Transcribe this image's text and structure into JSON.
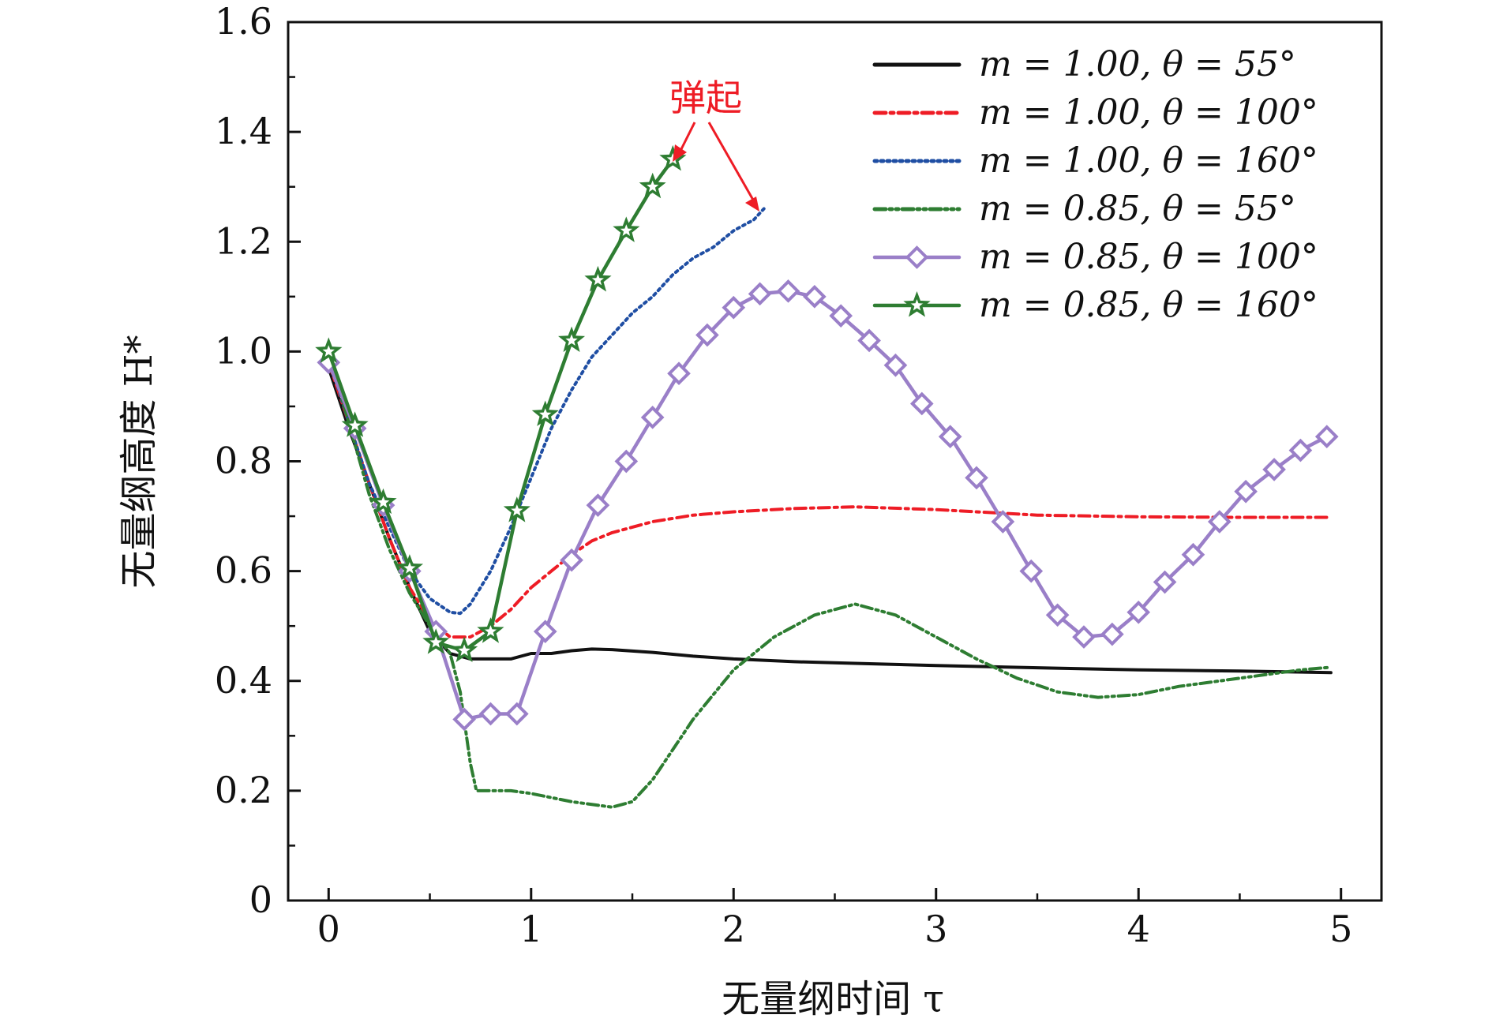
{
  "chart_data": {
    "type": "line",
    "title": "",
    "xlabel": "无量纲时间 τ",
    "ylabel": "无量纲高度 H*",
    "xlim": [
      -0.2,
      5.2
    ],
    "ylim": [
      0,
      1.6
    ],
    "x_ticks": [
      "0",
      "1",
      "2",
      "3",
      "4",
      "5"
    ],
    "y_ticks": [
      "0",
      "0.2",
      "0.4",
      "0.6",
      "0.8",
      "1.0",
      "1.2",
      "1.4",
      "1.6"
    ],
    "grid": false,
    "legend_position": "top-right",
    "annotation": {
      "text": "弹起",
      "color": "#ee1c25"
    },
    "series": [
      {
        "name": "m = 1.00, θ = 55°",
        "color": "#111111",
        "dash": "solid",
        "marker": "none",
        "points": [
          [
            0,
            0.97
          ],
          [
            0.1,
            0.86
          ],
          [
            0.2,
            0.76
          ],
          [
            0.3,
            0.66
          ],
          [
            0.4,
            0.57
          ],
          [
            0.5,
            0.49
          ],
          [
            0.6,
            0.45
          ],
          [
            0.7,
            0.44
          ],
          [
            0.8,
            0.44
          ],
          [
            0.9,
            0.44
          ],
          [
            1.0,
            0.45
          ],
          [
            1.1,
            0.45
          ],
          [
            1.2,
            0.455
          ],
          [
            1.3,
            0.458
          ],
          [
            1.4,
            0.457
          ],
          [
            1.6,
            0.452
          ],
          [
            1.8,
            0.445
          ],
          [
            2.0,
            0.44
          ],
          [
            2.3,
            0.435
          ],
          [
            2.6,
            0.432
          ],
          [
            3.0,
            0.428
          ],
          [
            3.5,
            0.424
          ],
          [
            4.0,
            0.42
          ],
          [
            4.5,
            0.418
          ],
          [
            4.95,
            0.415
          ]
        ]
      },
      {
        "name": "m = 1.00, θ = 100°",
        "color": "#ee1c25",
        "dash": "dashdot",
        "marker": "none",
        "points": [
          [
            0,
            0.98
          ],
          [
            0.1,
            0.87
          ],
          [
            0.2,
            0.76
          ],
          [
            0.3,
            0.66
          ],
          [
            0.4,
            0.57
          ],
          [
            0.5,
            0.51
          ],
          [
            0.6,
            0.48
          ],
          [
            0.7,
            0.48
          ],
          [
            0.8,
            0.5
          ],
          [
            0.9,
            0.53
          ],
          [
            1.0,
            0.57
          ],
          [
            1.1,
            0.6
          ],
          [
            1.2,
            0.63
          ],
          [
            1.3,
            0.655
          ],
          [
            1.4,
            0.67
          ],
          [
            1.6,
            0.69
          ],
          [
            1.8,
            0.702
          ],
          [
            2.0,
            0.708
          ],
          [
            2.3,
            0.714
          ],
          [
            2.6,
            0.717
          ],
          [
            3.0,
            0.712
          ],
          [
            3.5,
            0.702
          ],
          [
            4.0,
            0.699
          ],
          [
            4.5,
            0.698
          ],
          [
            4.95,
            0.698
          ]
        ]
      },
      {
        "name": "m = 1.00, θ = 160°",
        "color": "#1f4ea3",
        "dash": "dot",
        "marker": "none",
        "points": [
          [
            0,
            0.99
          ],
          [
            0.1,
            0.87
          ],
          [
            0.2,
            0.76
          ],
          [
            0.3,
            0.68
          ],
          [
            0.4,
            0.6
          ],
          [
            0.5,
            0.55
          ],
          [
            0.6,
            0.525
          ],
          [
            0.65,
            0.523
          ],
          [
            0.7,
            0.54
          ],
          [
            0.8,
            0.6
          ],
          [
            0.9,
            0.68
          ],
          [
            1.0,
            0.77
          ],
          [
            1.1,
            0.86
          ],
          [
            1.2,
            0.93
          ],
          [
            1.3,
            0.99
          ],
          [
            1.4,
            1.03
          ],
          [
            1.5,
            1.07
          ],
          [
            1.6,
            1.1
          ],
          [
            1.7,
            1.14
          ],
          [
            1.8,
            1.17
          ],
          [
            1.9,
            1.19
          ],
          [
            2.0,
            1.22
          ],
          [
            2.1,
            1.24
          ],
          [
            2.15,
            1.26
          ]
        ]
      },
      {
        "name": "m = 0.85, θ = 55°",
        "color": "#2e7d32",
        "dash": "dashdotdot",
        "marker": "none",
        "points": [
          [
            0,
            1.0
          ],
          [
            0.1,
            0.87
          ],
          [
            0.2,
            0.74
          ],
          [
            0.3,
            0.64
          ],
          [
            0.4,
            0.56
          ],
          [
            0.5,
            0.5
          ],
          [
            0.6,
            0.45
          ],
          [
            0.65,
            0.38
          ],
          [
            0.7,
            0.25
          ],
          [
            0.73,
            0.2
          ],
          [
            0.8,
            0.2
          ],
          [
            0.9,
            0.2
          ],
          [
            1.0,
            0.195
          ],
          [
            1.2,
            0.18
          ],
          [
            1.4,
            0.17
          ],
          [
            1.5,
            0.18
          ],
          [
            1.6,
            0.22
          ],
          [
            1.8,
            0.33
          ],
          [
            2.0,
            0.42
          ],
          [
            2.2,
            0.48
          ],
          [
            2.4,
            0.52
          ],
          [
            2.6,
            0.54
          ],
          [
            2.8,
            0.52
          ],
          [
            3.0,
            0.48
          ],
          [
            3.2,
            0.44
          ],
          [
            3.4,
            0.405
          ],
          [
            3.6,
            0.38
          ],
          [
            3.8,
            0.37
          ],
          [
            4.0,
            0.375
          ],
          [
            4.2,
            0.39
          ],
          [
            4.4,
            0.4
          ],
          [
            4.6,
            0.41
          ],
          [
            4.8,
            0.42
          ],
          [
            4.95,
            0.425
          ]
        ]
      },
      {
        "name": "m = 0.85, θ = 100°",
        "color": "#9a7fc8",
        "dash": "solid",
        "marker": "diamond",
        "points": [
          [
            0,
            0.98
          ],
          [
            0.13,
            0.86
          ],
          [
            0.27,
            0.72
          ],
          [
            0.4,
            0.6
          ],
          [
            0.53,
            0.49
          ],
          [
            0.67,
            0.33
          ],
          [
            0.8,
            0.34
          ],
          [
            0.93,
            0.34
          ],
          [
            1.07,
            0.49
          ],
          [
            1.2,
            0.62
          ],
          [
            1.33,
            0.72
          ],
          [
            1.47,
            0.8
          ],
          [
            1.6,
            0.88
          ],
          [
            1.73,
            0.96
          ],
          [
            1.87,
            1.03
          ],
          [
            2.0,
            1.08
          ],
          [
            2.13,
            1.105
          ],
          [
            2.27,
            1.11
          ],
          [
            2.4,
            1.1
          ],
          [
            2.53,
            1.065
          ],
          [
            2.67,
            1.02
          ],
          [
            2.8,
            0.975
          ],
          [
            2.93,
            0.905
          ],
          [
            3.07,
            0.845
          ],
          [
            3.2,
            0.77
          ],
          [
            3.33,
            0.69
          ],
          [
            3.47,
            0.6
          ],
          [
            3.6,
            0.52
          ],
          [
            3.73,
            0.48
          ],
          [
            3.87,
            0.485
          ],
          [
            4.0,
            0.525
          ],
          [
            4.13,
            0.58
          ],
          [
            4.27,
            0.63
          ],
          [
            4.4,
            0.69
          ],
          [
            4.53,
            0.745
          ],
          [
            4.67,
            0.785
          ],
          [
            4.8,
            0.82
          ],
          [
            4.93,
            0.845
          ]
        ]
      },
      {
        "name": "m = 0.85, θ = 160°",
        "color": "#2e7d32",
        "dash": "solid",
        "marker": "star",
        "points": [
          [
            0,
            1.0
          ],
          [
            0.13,
            0.865
          ],
          [
            0.27,
            0.725
          ],
          [
            0.4,
            0.605
          ],
          [
            0.53,
            0.47
          ],
          [
            0.67,
            0.455
          ],
          [
            0.8,
            0.49
          ],
          [
            0.93,
            0.71
          ],
          [
            1.07,
            0.885
          ],
          [
            1.2,
            1.02
          ],
          [
            1.33,
            1.13
          ],
          [
            1.47,
            1.22
          ],
          [
            1.6,
            1.3
          ],
          [
            1.7,
            1.35
          ]
        ]
      }
    ]
  }
}
